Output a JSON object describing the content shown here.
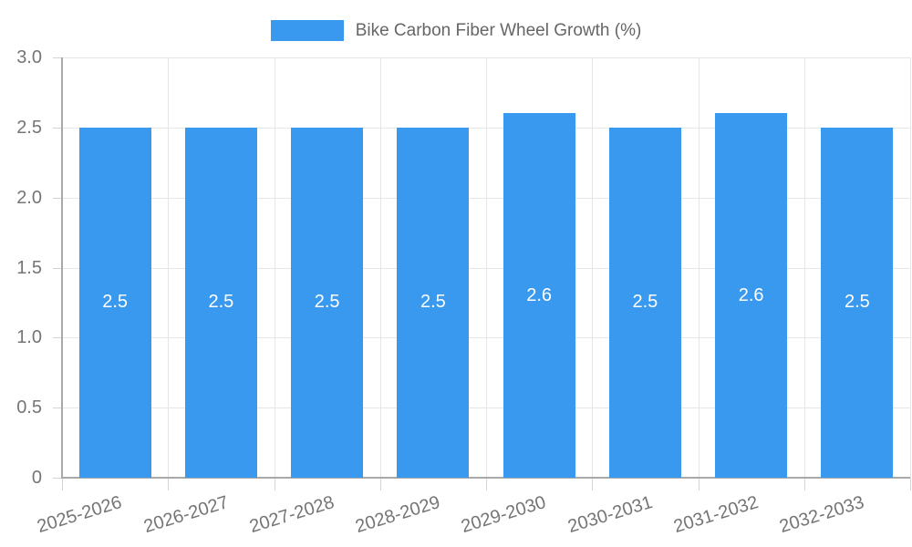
{
  "chart_data": {
    "type": "bar",
    "title": "Bike Carbon Fiber Wheel Growth (%)",
    "xlabel": "",
    "ylabel": "",
    "categories": [
      "2025-2026",
      "2026-2027",
      "2027-2028",
      "2028-2029",
      "2029-2030",
      "2030-2031",
      "2031-2032",
      "2032-2033"
    ],
    "values": [
      2.5,
      2.5,
      2.5,
      2.5,
      2.6,
      2.5,
      2.6,
      2.5
    ],
    "bar_labels": [
      "2.5",
      "2.5",
      "2.5",
      "2.5",
      "2.6",
      "2.5",
      "2.6",
      "2.5"
    ],
    "ylim": [
      0,
      3
    ],
    "yticks": [
      {
        "value": 0,
        "label": "0"
      },
      {
        "value": 0.5,
        "label": "0.5"
      },
      {
        "value": 1,
        "label": "1.0"
      },
      {
        "value": 1.5,
        "label": "1.5"
      },
      {
        "value": 2,
        "label": "2.0"
      },
      {
        "value": 2.5,
        "label": "2.5"
      },
      {
        "value": 3,
        "label": "3.0"
      }
    ],
    "grid": true,
    "legend_position": "top-center",
    "legend": {
      "label": "Bike Carbon Fiber Wheel Growth (%)",
      "swatch_color": "#3999EE"
    },
    "colors": {
      "bar": "#3999EE",
      "grid": "#e6e6e6",
      "tick": "#d4d4d4",
      "axis": "#a9a9a9",
      "axis_label_text": "#757575",
      "legend_text": "#666666",
      "bar_label_text": "#ffffff"
    }
  }
}
